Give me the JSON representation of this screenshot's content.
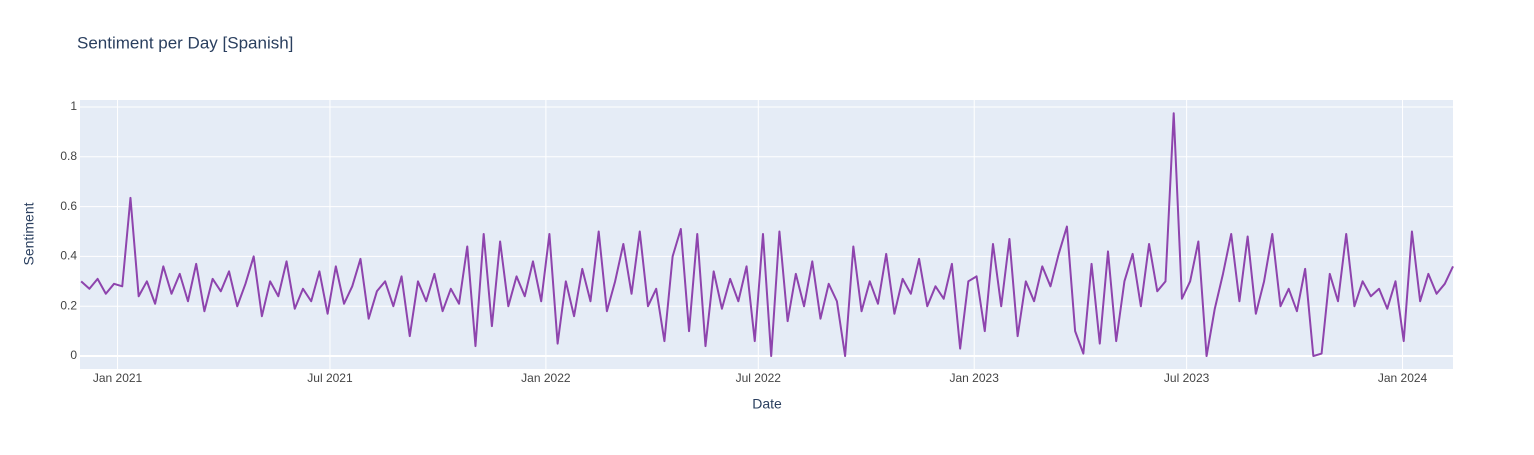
{
  "chart_data": {
    "type": "line",
    "title": "Sentiment per Day [Spanish]",
    "x_label": "Date",
    "y_label": "Sentiment",
    "color": "#8e44ad",
    "grid": true,
    "xlim": [
      "2020-11-30",
      "2024-02-13"
    ],
    "ylim": [
      -0.052,
      1.028
    ],
    "xticks": [
      {
        "value": "2021-01-01",
        "label": "Jan 2021"
      },
      {
        "value": "2021-07-01",
        "label": "Jul 2021"
      },
      {
        "value": "2022-01-01",
        "label": "Jan 2022"
      },
      {
        "value": "2022-07-01",
        "label": "Jul 2022"
      },
      {
        "value": "2023-01-01",
        "label": "Jan 2023"
      },
      {
        "value": "2023-07-01",
        "label": "Jul 2023"
      },
      {
        "value": "2024-01-01",
        "label": "Jan 2024"
      }
    ],
    "yticks": [
      0,
      0.2,
      0.4,
      0.6,
      0.8,
      1
    ],
    "x": [
      "2020-12-01",
      "2020-12-08",
      "2020-12-15",
      "2020-12-22",
      "2020-12-29",
      "2021-01-05",
      "2021-01-12",
      "2021-01-19",
      "2021-01-26",
      "2021-02-02",
      "2021-02-09",
      "2021-02-16",
      "2021-02-23",
      "2021-03-02",
      "2021-03-09",
      "2021-03-16",
      "2021-03-23",
      "2021-03-30",
      "2021-04-06",
      "2021-04-13",
      "2021-04-20",
      "2021-04-27",
      "2021-05-04",
      "2021-05-11",
      "2021-05-18",
      "2021-05-25",
      "2021-06-01",
      "2021-06-08",
      "2021-06-15",
      "2021-06-22",
      "2021-06-29",
      "2021-07-06",
      "2021-07-13",
      "2021-07-20",
      "2021-07-27",
      "2021-08-03",
      "2021-08-10",
      "2021-08-17",
      "2021-08-24",
      "2021-08-31",
      "2021-09-07",
      "2021-09-14",
      "2021-09-21",
      "2021-09-28",
      "2021-10-05",
      "2021-10-12",
      "2021-10-19",
      "2021-10-26",
      "2021-11-02",
      "2021-11-09",
      "2021-11-16",
      "2021-11-23",
      "2021-11-30",
      "2021-12-07",
      "2021-12-14",
      "2021-12-21",
      "2021-12-28",
      "2022-01-04",
      "2022-01-11",
      "2022-01-18",
      "2022-01-25",
      "2022-02-01",
      "2022-02-08",
      "2022-02-15",
      "2022-02-22",
      "2022-03-01",
      "2022-03-08",
      "2022-03-15",
      "2022-03-22",
      "2022-03-29",
      "2022-04-05",
      "2022-04-12",
      "2022-04-19",
      "2022-04-26",
      "2022-05-03",
      "2022-05-10",
      "2022-05-17",
      "2022-05-24",
      "2022-05-31",
      "2022-06-07",
      "2022-06-14",
      "2022-06-21",
      "2022-06-28",
      "2022-07-05",
      "2022-07-12",
      "2022-07-19",
      "2022-07-26",
      "2022-08-02",
      "2022-08-09",
      "2022-08-16",
      "2022-08-23",
      "2022-08-30",
      "2022-09-06",
      "2022-09-13",
      "2022-09-20",
      "2022-09-27",
      "2022-10-04",
      "2022-10-11",
      "2022-10-18",
      "2022-10-25",
      "2022-11-01",
      "2022-11-08",
      "2022-11-15",
      "2022-11-22",
      "2022-11-29",
      "2022-12-06",
      "2022-12-13",
      "2022-12-20",
      "2022-12-27",
      "2023-01-03",
      "2023-01-10",
      "2023-01-17",
      "2023-01-24",
      "2023-01-31",
      "2023-02-07",
      "2023-02-14",
      "2023-02-21",
      "2023-02-28",
      "2023-03-07",
      "2023-03-14",
      "2023-03-21",
      "2023-03-28",
      "2023-04-04",
      "2023-04-11",
      "2023-04-18",
      "2023-04-25",
      "2023-05-02",
      "2023-05-09",
      "2023-05-16",
      "2023-05-23",
      "2023-05-30",
      "2023-06-06",
      "2023-06-13",
      "2023-06-20",
      "2023-06-27",
      "2023-07-04",
      "2023-07-11",
      "2023-07-18",
      "2023-07-25",
      "2023-08-01",
      "2023-08-08",
      "2023-08-15",
      "2023-08-22",
      "2023-08-29",
      "2023-09-05",
      "2023-09-12",
      "2023-09-19",
      "2023-09-26",
      "2023-10-03",
      "2023-10-10",
      "2023-10-17",
      "2023-10-24",
      "2023-10-31",
      "2023-11-07",
      "2023-11-14",
      "2023-11-21",
      "2023-11-28",
      "2023-12-05",
      "2023-12-12",
      "2023-12-19",
      "2023-12-26",
      "2024-01-02",
      "2024-01-09",
      "2024-01-16",
      "2024-01-23",
      "2024-01-30",
      "2024-02-06",
      "2024-02-13"
    ],
    "values": [
      0.3,
      0.27,
      0.31,
      0.25,
      0.29,
      0.28,
      0.635,
      0.24,
      0.3,
      0.21,
      0.36,
      0.25,
      0.33,
      0.22,
      0.37,
      0.18,
      0.31,
      0.26,
      0.34,
      0.2,
      0.29,
      0.4,
      0.16,
      0.3,
      0.24,
      0.38,
      0.19,
      0.27,
      0.22,
      0.34,
      0.17,
      0.36,
      0.21,
      0.28,
      0.39,
      0.15,
      0.26,
      0.3,
      0.2,
      0.32,
      0.08,
      0.3,
      0.22,
      0.33,
      0.18,
      0.27,
      0.21,
      0.44,
      0.04,
      0.49,
      0.12,
      0.46,
      0.2,
      0.32,
      0.24,
      0.38,
      0.22,
      0.49,
      0.05,
      0.3,
      0.16,
      0.35,
      0.22,
      0.5,
      0.18,
      0.3,
      0.45,
      0.25,
      0.5,
      0.2,
      0.27,
      0.06,
      0.4,
      0.51,
      0.1,
      0.49,
      0.04,
      0.34,
      0.19,
      0.31,
      0.22,
      0.36,
      0.06,
      0.49,
      0.0,
      0.5,
      0.14,
      0.33,
      0.2,
      0.38,
      0.15,
      0.29,
      0.22,
      0.0,
      0.44,
      0.18,
      0.3,
      0.21,
      0.41,
      0.17,
      0.31,
      0.25,
      0.39,
      0.2,
      0.28,
      0.23,
      0.37,
      0.03,
      0.3,
      0.32,
      0.1,
      0.45,
      0.2,
      0.47,
      0.08,
      0.3,
      0.22,
      0.36,
      0.28,
      0.41,
      0.52,
      0.1,
      0.01,
      0.37,
      0.05,
      0.42,
      0.06,
      0.3,
      0.41,
      0.2,
      0.45,
      0.26,
      0.3,
      0.975,
      0.23,
      0.3,
      0.46,
      0.0,
      0.19,
      0.33,
      0.49,
      0.22,
      0.48,
      0.17,
      0.3,
      0.49,
      0.2,
      0.27,
      0.18,
      0.35,
      0.0,
      0.01,
      0.33,
      0.22,
      0.49,
      0.2,
      0.3,
      0.24,
      0.27,
      0.19,
      0.3,
      0.06,
      0.5,
      0.22,
      0.33,
      0.25,
      0.29,
      0.36
    ]
  }
}
